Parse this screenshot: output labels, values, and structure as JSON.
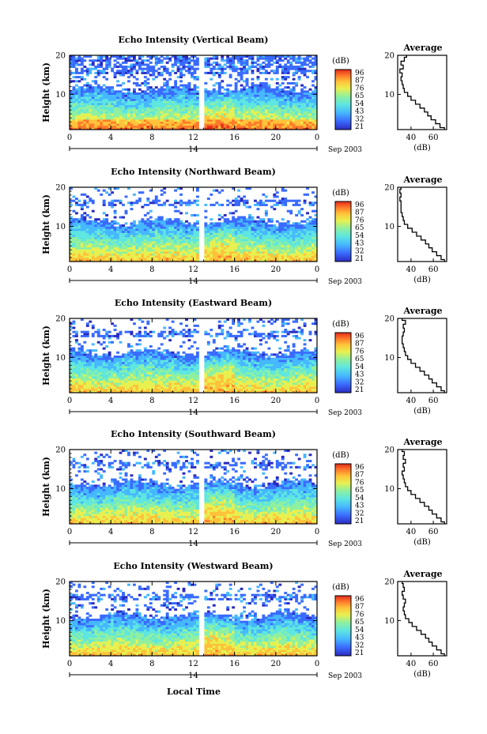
{
  "chart_data": [
    {
      "type": "heatmap",
      "title": "Echo Intensity (Vertical Beam)",
      "ylabel": "Height (km)",
      "xlabel": "Local Time",
      "x_ticks": [
        "0",
        "4",
        "8",
        "12",
        "16",
        "20",
        "0"
      ],
      "y_ticks": [
        "10",
        "20"
      ],
      "xlim": [
        0,
        24
      ],
      "ylim": [
        1,
        20
      ],
      "date_label": "14",
      "month_label": "Sep 2003",
      "colorbar": {
        "label": "(dB)",
        "ticks": [
          "96",
          "87",
          "76",
          "65",
          "54",
          "43",
          "32",
          "21"
        ],
        "range": [
          21,
          96
        ]
      },
      "average_profile": {
        "title": "Average",
        "xlabel": "(dB)",
        "x_ticks": [
          "40",
          "60"
        ],
        "xlim": [
          28,
          72
        ],
        "heights_km": [
          1,
          2,
          3,
          4,
          5,
          6,
          7,
          8,
          9,
          10,
          11,
          12,
          13,
          14,
          15,
          16,
          17,
          18,
          19,
          20
        ],
        "values_db": [
          70,
          66,
          62,
          58,
          55,
          52,
          48,
          44,
          40,
          37,
          34,
          33,
          32,
          31,
          32,
          30,
          33,
          31,
          34,
          36
        ]
      }
    },
    {
      "type": "heatmap",
      "title": "Echo Intensity (Northward Beam)",
      "ylabel": "Height (km)",
      "xlabel": "Local Time",
      "x_ticks": [
        "0",
        "4",
        "8",
        "12",
        "16",
        "20",
        "0"
      ],
      "y_ticks": [
        "10",
        "20"
      ],
      "xlim": [
        0,
        24
      ],
      "ylim": [
        1,
        20
      ],
      "date_label": "14",
      "month_label": "Sep 2003",
      "colorbar": {
        "label": "(dB)",
        "ticks": [
          "96",
          "87",
          "76",
          "65",
          "54",
          "43",
          "32",
          "21"
        ],
        "range": [
          21,
          96
        ]
      },
      "average_profile": {
        "title": "Average",
        "xlabel": "(dB)",
        "x_ticks": [
          "40",
          "60"
        ],
        "xlim": [
          28,
          72
        ],
        "heights_km": [
          1,
          2,
          3,
          4,
          5,
          6,
          7,
          8,
          9,
          10,
          11,
          12,
          13,
          14,
          15,
          16,
          17,
          18,
          19,
          20
        ],
        "values_db": [
          70,
          67,
          63,
          59,
          56,
          53,
          49,
          45,
          41,
          37,
          34,
          33,
          32,
          31,
          31,
          31,
          30,
          31,
          30,
          31
        ]
      }
    },
    {
      "type": "heatmap",
      "title": "Echo Intensity (Eastward Beam)",
      "ylabel": "Height (km)",
      "xlabel": "Local Time",
      "x_ticks": [
        "0",
        "4",
        "8",
        "12",
        "16",
        "20",
        "0"
      ],
      "y_ticks": [
        "10",
        "20"
      ],
      "xlim": [
        0,
        24
      ],
      "ylim": [
        1,
        20
      ],
      "date_label": "14",
      "month_label": "Sep 2003",
      "colorbar": {
        "label": "(dB)",
        "ticks": [
          "96",
          "87",
          "76",
          "65",
          "54",
          "43",
          "32",
          "21"
        ],
        "range": [
          21,
          96
        ]
      },
      "average_profile": {
        "title": "Average",
        "xlabel": "(dB)",
        "x_ticks": [
          "40",
          "60"
        ],
        "xlim": [
          28,
          72
        ],
        "heights_km": [
          1,
          2,
          3,
          4,
          5,
          6,
          7,
          8,
          9,
          10,
          11,
          12,
          13,
          14,
          15,
          16,
          17,
          18,
          19,
          20
        ],
        "values_db": [
          70,
          67,
          63,
          59,
          56,
          52,
          48,
          44,
          40,
          37,
          35,
          34,
          33,
          32,
          32,
          33,
          34,
          33,
          35,
          32
        ]
      }
    },
    {
      "type": "heatmap",
      "title": "Echo Intensity (Southward Beam)",
      "ylabel": "Height (km)",
      "xlabel": "Local Time",
      "x_ticks": [
        "0",
        "4",
        "8",
        "12",
        "16",
        "20",
        "0"
      ],
      "y_ticks": [
        "10",
        "20"
      ],
      "xlim": [
        0,
        24
      ],
      "ylim": [
        1,
        20
      ],
      "date_label": "14",
      "month_label": "Sep 2003",
      "colorbar": {
        "label": "(dB)",
        "ticks": [
          "96",
          "87",
          "76",
          "65",
          "54",
          "43",
          "32",
          "21"
        ],
        "range": [
          21,
          96
        ]
      },
      "average_profile": {
        "title": "Average",
        "xlabel": "(dB)",
        "x_ticks": [
          "40",
          "60"
        ],
        "xlim": [
          28,
          72
        ],
        "heights_km": [
          1,
          2,
          3,
          4,
          5,
          6,
          7,
          8,
          9,
          10,
          11,
          12,
          13,
          14,
          15,
          16,
          17,
          18,
          19,
          20
        ],
        "values_db": [
          70,
          67,
          63,
          59,
          56,
          52,
          48,
          44,
          40,
          37,
          35,
          34,
          33,
          32,
          34,
          33,
          35,
          33,
          34,
          32
        ]
      }
    },
    {
      "type": "heatmap",
      "title": "Echo Intensity (Westward Beam)",
      "ylabel": "Height (km)",
      "xlabel": "Local Time",
      "x_ticks": [
        "0",
        "4",
        "8",
        "12",
        "16",
        "20",
        "0"
      ],
      "y_ticks": [
        "10",
        "20"
      ],
      "xlim": [
        0,
        24
      ],
      "ylim": [
        1,
        20
      ],
      "date_label": "14",
      "month_label": "Sep 2003",
      "colorbar": {
        "label": "(dB)",
        "ticks": [
          "96",
          "87",
          "76",
          "65",
          "54",
          "43",
          "32",
          "21"
        ],
        "range": [
          21,
          96
        ]
      },
      "average_profile": {
        "title": "Average",
        "xlabel": "(dB)",
        "x_ticks": [
          "40",
          "60"
        ],
        "xlim": [
          28,
          72
        ],
        "heights_km": [
          1,
          2,
          3,
          4,
          5,
          6,
          7,
          8,
          9,
          10,
          11,
          12,
          13,
          14,
          15,
          16,
          17,
          18,
          19,
          20
        ],
        "values_db": [
          70,
          67,
          63,
          59,
          56,
          53,
          49,
          45,
          41,
          38,
          35,
          34,
          33,
          34,
          35,
          33,
          32,
          34,
          33,
          32
        ]
      }
    }
  ],
  "colors": {
    "scale": [
      "#2b2bc0",
      "#3a6bff",
      "#46b8ff",
      "#5ee6e0",
      "#8ef0a0",
      "#e8f050",
      "#ffc23a",
      "#ff7a2a",
      "#e32a1a"
    ]
  },
  "bottom_xlabel": "Local Time"
}
